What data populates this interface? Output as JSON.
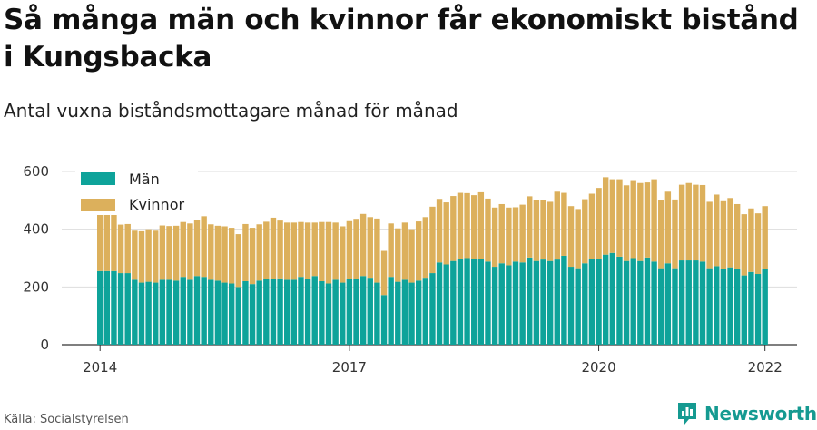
{
  "title": "Så många män och kvinnor får ekonomiskt bistånd i Kungsbacka",
  "subtitle": "Antal vuxna biståndsmottagare månad för månad",
  "source": "Källa: Socialstyrelsen",
  "brand": {
    "name": "Newsworthy",
    "icon": "newsworthy-logo-icon",
    "color": "#159a91"
  },
  "chart_data": {
    "type": "bar",
    "stacked": true,
    "ylim": [
      0,
      600
    ],
    "yticks": [
      0,
      200,
      400,
      600
    ],
    "xticks": [
      {
        "label": "2014",
        "index": 0
      },
      {
        "label": "2017",
        "index": 36
      },
      {
        "label": "2020",
        "index": 72
      },
      {
        "label": "2022",
        "index": 96
      }
    ],
    "grid": true,
    "legend": {
      "placement": "top-left"
    },
    "series": [
      {
        "name": "Män",
        "color": "#0ea39a",
        "values": [
          255,
          255,
          255,
          248,
          248,
          225,
          215,
          218,
          215,
          225,
          225,
          222,
          235,
          225,
          238,
          235,
          225,
          222,
          215,
          212,
          200,
          220,
          210,
          222,
          228,
          228,
          230,
          225,
          225,
          235,
          228,
          238,
          220,
          212,
          225,
          215,
          228,
          228,
          238,
          232,
          215,
          172,
          235,
          218,
          225,
          215,
          222,
          232,
          248,
          285,
          278,
          290,
          298,
          300,
          298,
          298,
          288,
          270,
          282,
          275,
          288,
          285,
          302,
          290,
          295,
          290,
          295,
          308,
          270,
          265,
          282,
          298,
          298,
          312,
          318,
          305,
          290,
          300,
          290,
          302,
          288,
          265,
          282,
          265,
          292,
          292,
          292,
          288,
          265,
          272,
          262,
          268,
          262,
          240,
          252,
          245,
          262
        ]
      },
      {
        "name": "Kvinnor",
        "color": "#dcb05c",
        "values": [
          200,
          196,
          200,
          168,
          170,
          170,
          178,
          182,
          180,
          188,
          186,
          190,
          190,
          195,
          195,
          210,
          192,
          190,
          195,
          193,
          183,
          198,
          195,
          195,
          198,
          212,
          200,
          198,
          198,
          190,
          195,
          185,
          205,
          213,
          198,
          195,
          200,
          208,
          215,
          210,
          222,
          153,
          185,
          185,
          198,
          185,
          205,
          210,
          230,
          220,
          215,
          225,
          228,
          225,
          220,
          230,
          218,
          205,
          205,
          200,
          188,
          200,
          212,
          210,
          205,
          205,
          235,
          218,
          210,
          205,
          222,
          225,
          245,
          268,
          255,
          268,
          262,
          270,
          270,
          260,
          285,
          235,
          248,
          238,
          262,
          268,
          262,
          265,
          230,
          248,
          235,
          240,
          225,
          212,
          220,
          210,
          218
        ]
      }
    ]
  }
}
